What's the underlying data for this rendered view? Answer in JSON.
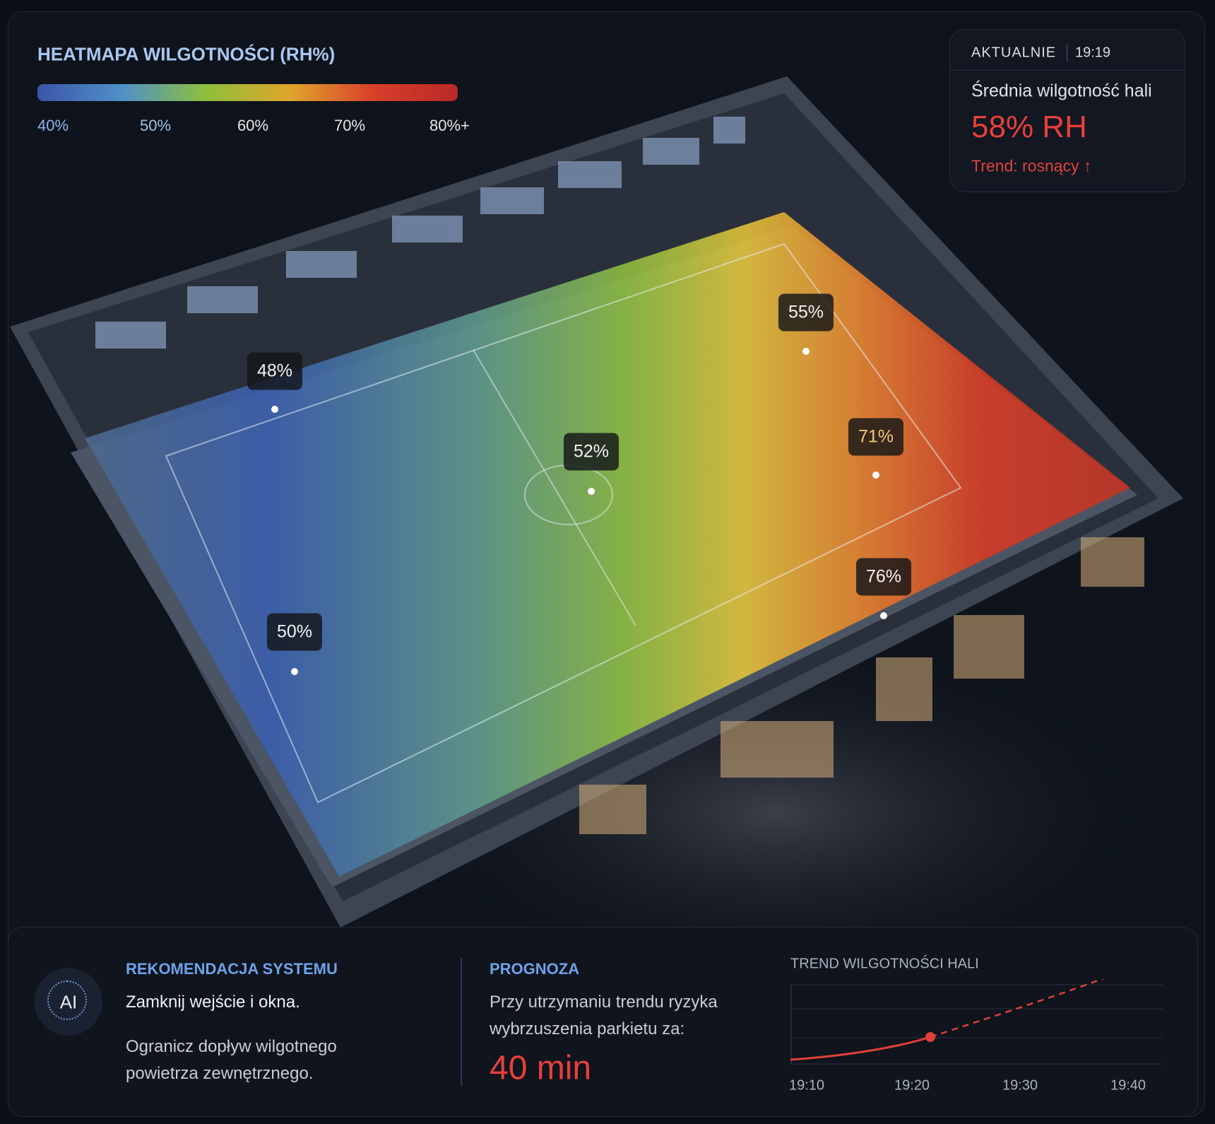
{
  "legend": {
    "title": "HEATMAPA WILGOTNOŚCI (RH%)",
    "labels": [
      "40%",
      "50%",
      "60%",
      "70%",
      "80%+"
    ]
  },
  "sensors": [
    "48%",
    "55%",
    "52%",
    "71%",
    "76%",
    "50%"
  ],
  "current": {
    "label": "AKTUALNIE",
    "time": "19:19",
    "metric": "Średnia wilgotność hali",
    "value": "58% RH",
    "trend": "Trend: rosnący ↑"
  },
  "recommendation": {
    "icon": "AI",
    "title": "REKOMENDACJA SYSTEMU",
    "lines": [
      "Zamknij wejście i okna.",
      "Ogranicz dopływ wilgotnego",
      "powietrza zewnętrznego."
    ]
  },
  "forecast": {
    "title": "PROGNOZA",
    "lines": [
      "Przy utrzymaniu trendu ryzyka",
      "wybrzuszenia parkietu za:"
    ],
    "value": "40 min"
  },
  "trend": {
    "title": "TREND WILGOTNOŚCI HALI",
    "xticks": [
      "19:10",
      "19:20",
      "19:30",
      "19:40"
    ]
  }
}
